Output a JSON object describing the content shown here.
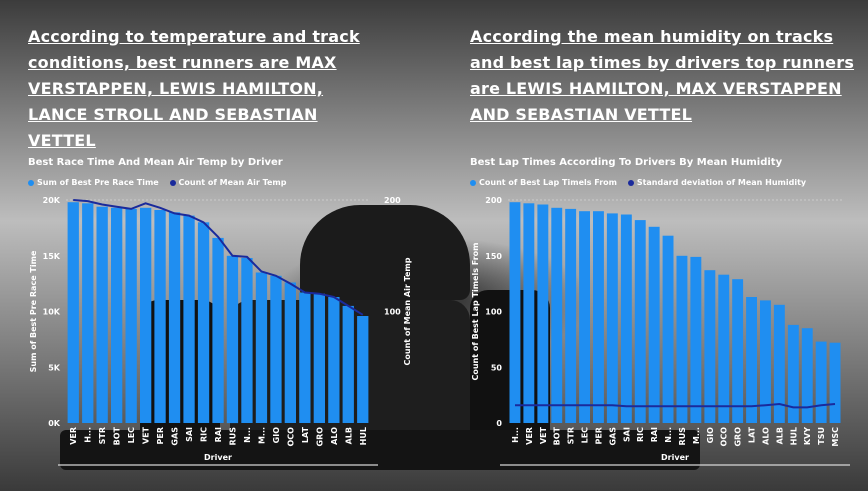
{
  "headlines": {
    "left": "According to temperature and track conditions, best runners are MAX VERSTAPPEN, LEWIS HAMILTON, LANCE STROLL AND SEBASTIAN VETTEL",
    "right": "According the mean humidity on tracks and best lap times by drivers top runners are LEWIS HAMILTON, MAX VERSTAPPEN AND SEBASTIAN VETTEL"
  },
  "colors": {
    "bar": "#1f8ef1",
    "line": "#1a2a9c",
    "text": "#ffffff"
  },
  "chart_data": [
    {
      "type": "bar",
      "title": "Best Race Time And Mean Air Temp by Driver",
      "xlabel": "Driver",
      "ylabel": "Sum of Best Pre Race Time",
      "y2label": "Count of Mean Air Temp",
      "ylim": [
        0,
        20000
      ],
      "y2lim": [
        0,
        200
      ],
      "yticks": [
        "0K",
        "5K",
        "10K",
        "15K",
        "20K"
      ],
      "y2ticks": [
        "100",
        "200"
      ],
      "categories": [
        "VER",
        "H...",
        "STR",
        "BOT",
        "LEC",
        "VET",
        "PER",
        "GAS",
        "SAI",
        "RIC",
        "RAI",
        "RUS",
        "N...",
        "M...",
        "GIO",
        "OCO",
        "LAT",
        "GRO",
        "ALO",
        "ALB",
        "HUL"
      ],
      "series": [
        {
          "name": "Sum of Best Pre Race Time",
          "kind": "bar",
          "values": [
            19800,
            19700,
            19400,
            19300,
            19200,
            19300,
            19100,
            18900,
            18600,
            18000,
            16600,
            15000,
            14800,
            13500,
            13200,
            12600,
            11700,
            11600,
            11300,
            10500,
            9600
          ]
        },
        {
          "name": "Count of Mean Air Temp",
          "kind": "line",
          "values": [
            200,
            199,
            196,
            194,
            192,
            197,
            193,
            188,
            186,
            180,
            167,
            150,
            149,
            136,
            132,
            125,
            117,
            116,
            113,
            105,
            97
          ]
        }
      ]
    },
    {
      "type": "bar",
      "title": "Best Lap Times According To Drivers By Mean Humidity",
      "xlabel": "Driver",
      "ylabel": "Count of Best Lap Timels From",
      "ylim": [
        0,
        200
      ],
      "yticks": [
        "0",
        "50",
        "100",
        "150",
        "200"
      ],
      "categories": [
        "H...",
        "VER",
        "VET",
        "BOT",
        "STR",
        "LEC",
        "PER",
        "GAS",
        "SAI",
        "RIC",
        "RAI",
        "N...",
        "RUS",
        "M...",
        "GIO",
        "OCO",
        "GRO",
        "LAT",
        "ALO",
        "ALB",
        "HUL",
        "KVY",
        "TSU",
        "MSC"
      ],
      "series": [
        {
          "name": "Count of Best Lap Timels From",
          "kind": "bar",
          "values": [
            198,
            197,
            196,
            193,
            192,
            190,
            190,
            188,
            187,
            182,
            176,
            168,
            150,
            149,
            137,
            133,
            129,
            113,
            110,
            106,
            88,
            85,
            73,
            72
          ]
        },
        {
          "name": "Standard deviation of Mean Humidity",
          "kind": "line",
          "values": [
            16,
            16,
            16,
            16,
            16,
            16,
            16,
            16,
            15,
            15,
            15,
            15,
            15,
            15,
            15,
            15,
            15,
            15,
            16,
            17,
            14,
            14,
            16,
            17
          ]
        }
      ]
    }
  ]
}
